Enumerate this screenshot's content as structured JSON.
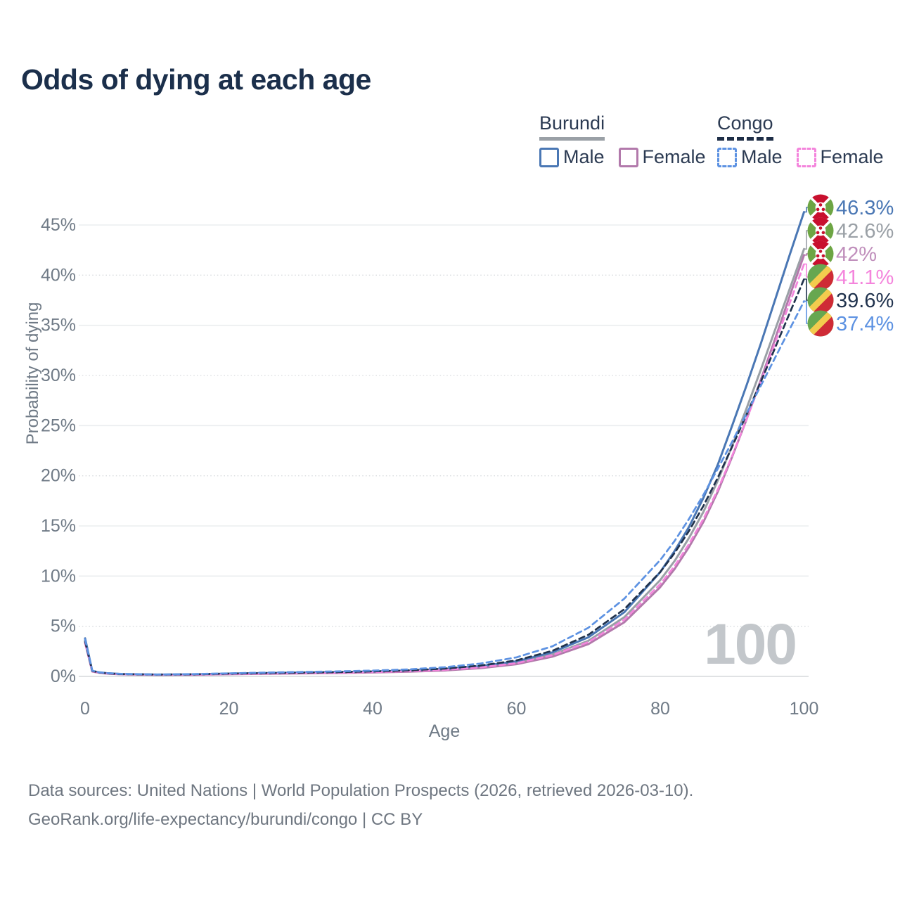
{
  "title": "Odds of dying at each age",
  "watermark": "100",
  "legend": {
    "groups": [
      {
        "name": "Burundi",
        "style": "solid",
        "underline_color": "#9aa0a6",
        "items": [
          {
            "label": "Male",
            "color": "#4a77b4"
          },
          {
            "label": "Female",
            "color": "#b279ab"
          }
        ]
      },
      {
        "name": "Congo",
        "style": "dashed",
        "underline_color": "#1e2e47",
        "items": [
          {
            "label": "Male",
            "color": "#5d92e2"
          },
          {
            "label": "Female",
            "color": "#f484dc"
          }
        ]
      }
    ]
  },
  "footer": {
    "line1": "Data sources: United Nations | World Population Prospects (2026, retrieved 2026-03-10).",
    "line2": "GeoRank.org/life-expectancy/burundi/congo | CC BY"
  },
  "chart_data": {
    "type": "line",
    "title": "Odds of dying at each age",
    "xlabel": "Age",
    "ylabel": "Probability of dying",
    "xlim": [
      0,
      100
    ],
    "ylim_percent": [
      0,
      47
    ],
    "x_ticks": [
      0,
      20,
      40,
      60,
      80,
      100
    ],
    "y_tick_values": [
      0,
      5,
      10,
      15,
      20,
      25,
      30,
      35,
      40,
      45
    ],
    "y_tick_labels": [
      "0%",
      "5%",
      "10%",
      "15%",
      "20%",
      "25%",
      "30%",
      "35%",
      "40%",
      "45%"
    ],
    "grid": "horizontal-only",
    "legend_position": "top-right",
    "ages": [
      0,
      1,
      2,
      3,
      5,
      10,
      15,
      20,
      25,
      30,
      35,
      40,
      45,
      50,
      55,
      60,
      65,
      70,
      75,
      80,
      82,
      84,
      86,
      88,
      90,
      92,
      94,
      96,
      98,
      100
    ],
    "series": [
      {
        "name": "Burundi Male",
        "country": "Burundi",
        "sex": "Male",
        "flag": "burundi",
        "color": "#4a77b4",
        "dash": "solid",
        "end_label": "46.3%",
        "label_color": "#4a77b4",
        "values": [
          3.8,
          0.55,
          0.4,
          0.32,
          0.24,
          0.18,
          0.2,
          0.28,
          0.33,
          0.38,
          0.43,
          0.49,
          0.58,
          0.74,
          1.02,
          1.5,
          2.4,
          3.9,
          6.4,
          10.4,
          12.5,
          14.9,
          17.8,
          21.1,
          25.0,
          29.0,
          33.2,
          37.6,
          42.0,
          46.3
        ]
      },
      {
        "name": "Burundi Both sexes",
        "country": "Burundi",
        "sex": "Both",
        "flag": "burundi",
        "color": "#9aa0a6",
        "dash": "solid",
        "end_label": "42.6%",
        "label_color": "#9aa0a6",
        "values": [
          3.6,
          0.52,
          0.38,
          0.3,
          0.22,
          0.17,
          0.18,
          0.25,
          0.29,
          0.34,
          0.38,
          0.44,
          0.52,
          0.66,
          0.92,
          1.36,
          2.18,
          3.55,
          5.9,
          9.6,
          11.5,
          13.8,
          16.4,
          19.5,
          23.0,
          26.7,
          30.6,
          34.6,
          38.6,
          42.6
        ]
      },
      {
        "name": "Burundi Female",
        "country": "Burundi",
        "sex": "Female",
        "flag": "burundi",
        "color": "#b279ab",
        "dash": "solid",
        "end_label": "42%",
        "label_color": "#c08fbc",
        "values": [
          3.4,
          0.49,
          0.36,
          0.28,
          0.21,
          0.16,
          0.17,
          0.22,
          0.26,
          0.3,
          0.33,
          0.39,
          0.47,
          0.59,
          0.82,
          1.22,
          1.97,
          3.22,
          5.4,
          8.9,
          10.7,
          12.9,
          15.4,
          18.4,
          21.9,
          25.6,
          29.6,
          33.7,
          37.9,
          42.0
        ]
      },
      {
        "name": "Congo Female",
        "country": "Congo",
        "sex": "Female",
        "flag": "congo",
        "color": "#f484dc",
        "dash": "dashed",
        "end_label": "41.1%",
        "label_color": "#f484dc",
        "values": [
          3.3,
          0.51,
          0.37,
          0.29,
          0.22,
          0.17,
          0.18,
          0.24,
          0.28,
          0.32,
          0.36,
          0.43,
          0.51,
          0.65,
          0.9,
          1.32,
          2.12,
          3.42,
          5.65,
          9.2,
          11.0,
          13.2,
          15.7,
          18.6,
          22.0,
          25.6,
          29.4,
          33.3,
          37.2,
          41.1
        ]
      },
      {
        "name": "Congo Both sexes",
        "country": "Congo",
        "sex": "Both",
        "flag": "congo",
        "color": "#21334e",
        "dash": "dashed",
        "end_label": "39.6%",
        "label_color": "#21334e",
        "values": [
          3.5,
          0.54,
          0.39,
          0.31,
          0.23,
          0.18,
          0.21,
          0.28,
          0.33,
          0.38,
          0.43,
          0.5,
          0.6,
          0.78,
          1.08,
          1.6,
          2.55,
          4.15,
          6.7,
          10.4,
          12.3,
          14.5,
          17.0,
          19.8,
          22.9,
          26.1,
          29.4,
          32.8,
          36.2,
          39.6
        ]
      },
      {
        "name": "Congo Male",
        "country": "Congo",
        "sex": "Male",
        "flag": "congo",
        "color": "#5d92e2",
        "dash": "dashed",
        "end_label": "37.4%",
        "label_color": "#5d92e2",
        "values": [
          3.7,
          0.57,
          0.41,
          0.33,
          0.25,
          0.19,
          0.23,
          0.31,
          0.38,
          0.44,
          0.5,
          0.58,
          0.7,
          0.92,
          1.28,
          1.9,
          3.0,
          4.85,
          7.75,
          11.6,
          13.5,
          15.7,
          18.1,
          20.7,
          23.4,
          26.2,
          29.0,
          31.8,
          34.6,
          37.4
        ]
      }
    ],
    "flag_colors": {
      "burundi": {
        "red": "#c8102e",
        "green": "#6da544",
        "white": "#ffffff"
      },
      "congo": {
        "green": "#67a750",
        "yellow": "#f3cc4e",
        "red": "#cf2b36"
      }
    }
  }
}
